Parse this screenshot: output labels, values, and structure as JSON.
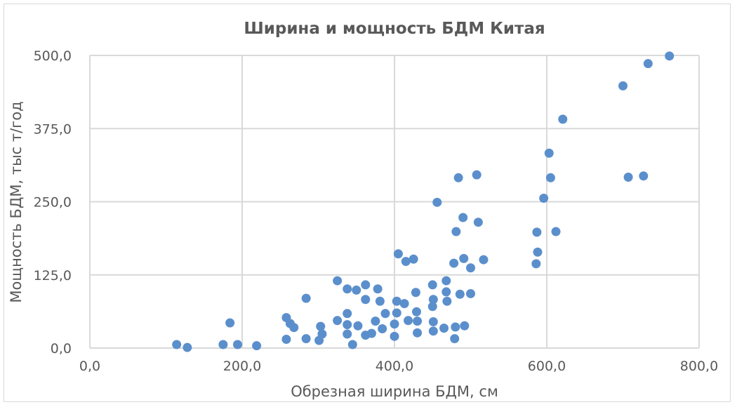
{
  "chart_data": {
    "type": "scatter",
    "title": "Ширина и мощность БДМ Китая",
    "xlabel": "Обрезная ширина БДМ, см",
    "ylabel": "Мощность БДМ, тыс т/год",
    "xlim": [
      0,
      800
    ],
    "ylim": [
      0,
      500
    ],
    "x_ticks": [
      "0,0",
      "200,0",
      "400,0",
      "600,0",
      "800,0"
    ],
    "y_ticks": [
      "0,0",
      "125,0",
      "250,0",
      "375,0",
      "500,0"
    ],
    "grid": true,
    "legend": "none",
    "marker_color": "#5b8fcc",
    "points": [
      [
        114,
        6
      ],
      [
        128,
        1
      ],
      [
        175,
        6
      ],
      [
        194,
        6
      ],
      [
        219,
        4
      ],
      [
        184,
        43
      ],
      [
        258,
        15
      ],
      [
        258,
        52
      ],
      [
        263,
        42
      ],
      [
        268,
        35
      ],
      [
        284,
        85
      ],
      [
        284,
        16
      ],
      [
        301,
        13
      ],
      [
        303,
        37
      ],
      [
        305,
        24
      ],
      [
        325,
        47
      ],
      [
        325,
        115
      ],
      [
        338,
        101
      ],
      [
        338,
        59
      ],
      [
        338,
        40
      ],
      [
        338,
        24
      ],
      [
        345,
        6
      ],
      [
        350,
        99
      ],
      [
        352,
        38
      ],
      [
        362,
        22
      ],
      [
        362,
        108
      ],
      [
        362,
        83
      ],
      [
        370,
        25
      ],
      [
        375,
        46
      ],
      [
        378,
        101
      ],
      [
        381,
        80
      ],
      [
        384,
        33
      ],
      [
        388,
        59
      ],
      [
        400,
        20
      ],
      [
        400,
        41
      ],
      [
        403,
        80
      ],
      [
        403,
        60
      ],
      [
        405,
        161
      ],
      [
        413,
        76
      ],
      [
        415,
        148
      ],
      [
        418,
        47
      ],
      [
        425,
        152
      ],
      [
        428,
        95
      ],
      [
        429,
        62
      ],
      [
        430,
        46
      ],
      [
        430,
        26
      ],
      [
        450,
        108
      ],
      [
        450,
        71
      ],
      [
        451,
        83
      ],
      [
        451,
        45
      ],
      [
        451,
        29
      ],
      [
        456,
        249
      ],
      [
        465,
        34
      ],
      [
        468,
        115
      ],
      [
        468,
        96
      ],
      [
        469,
        80
      ],
      [
        478,
        145
      ],
      [
        479,
        16
      ],
      [
        480,
        36
      ],
      [
        481,
        199
      ],
      [
        484,
        291
      ],
      [
        486,
        92
      ],
      [
        490,
        223
      ],
      [
        491,
        153
      ],
      [
        492,
        38
      ],
      [
        500,
        137
      ],
      [
        500,
        93
      ],
      [
        508,
        296
      ],
      [
        510,
        215
      ],
      [
        517,
        151
      ],
      [
        586,
        144
      ],
      [
        587,
        198
      ],
      [
        588,
        164
      ],
      [
        596,
        256
      ],
      [
        603,
        333
      ],
      [
        605,
        291
      ],
      [
        612,
        199
      ],
      [
        621,
        391
      ],
      [
        700,
        448
      ],
      [
        707,
        292
      ],
      [
        727,
        294
      ],
      [
        733,
        486
      ],
      [
        761,
        499
      ]
    ]
  }
}
